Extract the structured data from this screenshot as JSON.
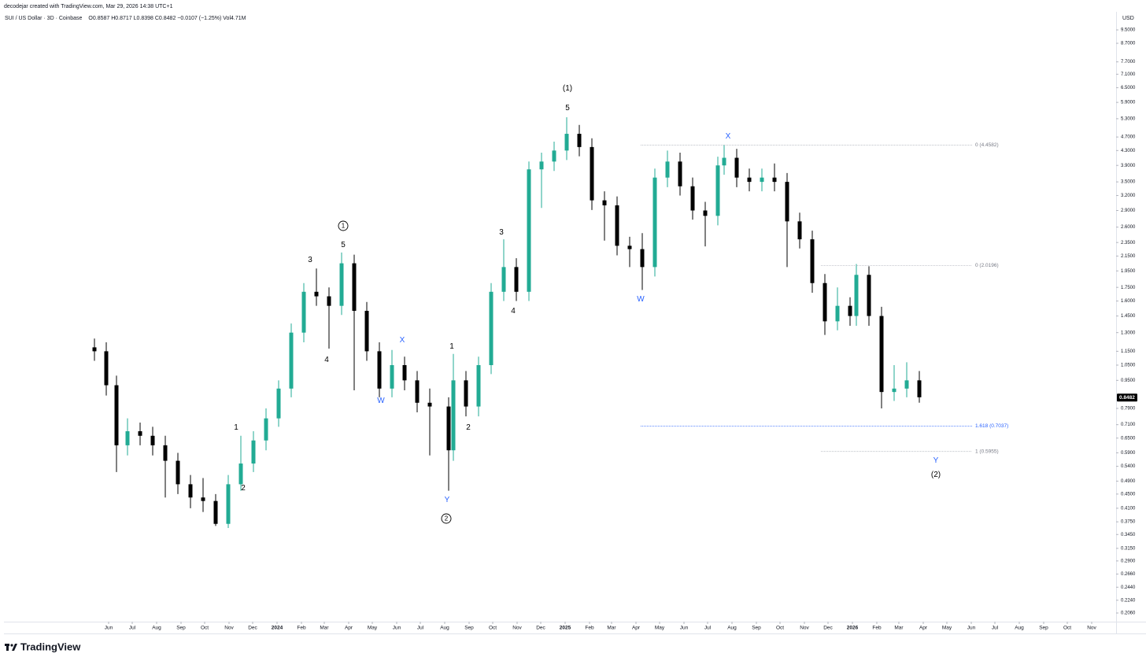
{
  "chart_data": {
    "type": "candlestick",
    "header": "decodejar created with TradingView.com, Mar 29, 2026 14:38 UTC+1",
    "title": "SUI / US Dollar · 3D · Coinbase",
    "ohlc": "O0.8587 H0.8717 L0.8398 C0.8482 −0.0107 (−1.25%) Vol4.71M",
    "currency": "USD",
    "brand": "TradingView",
    "log_scale": true,
    "up_color": "#22ab94",
    "down_color": "#000000",
    "last_price": 0.8482,
    "xlim": [
      -133,
      1280
    ],
    "ylim": [
      0.1946,
      10.7
    ],
    "xticks": [
      {
        "value": 0,
        "label": "Jun"
      },
      {
        "value": 30,
        "label": "Jul"
      },
      {
        "value": 61,
        "label": "Aug"
      },
      {
        "value": 92,
        "label": "Sep"
      },
      {
        "value": 122,
        "label": "Oct"
      },
      {
        "value": 153,
        "label": "Nov"
      },
      {
        "value": 183,
        "label": "Dec"
      },
      {
        "value": 214,
        "label": "2024"
      },
      {
        "value": 245,
        "label": "Feb"
      },
      {
        "value": 274,
        "label": "Mar"
      },
      {
        "value": 305,
        "label": "Apr"
      },
      {
        "value": 335,
        "label": "May"
      },
      {
        "value": 366,
        "label": "Jun"
      },
      {
        "value": 396,
        "label": "Jul"
      },
      {
        "value": 427,
        "label": "Aug"
      },
      {
        "value": 458,
        "label": "Sep"
      },
      {
        "value": 488,
        "label": "Oct"
      },
      {
        "value": 519,
        "label": "Nov"
      },
      {
        "value": 549,
        "label": "Dec"
      },
      {
        "value": 580,
        "label": "2025"
      },
      {
        "value": 611,
        "label": "Feb"
      },
      {
        "value": 639,
        "label": "Mar"
      },
      {
        "value": 670,
        "label": "Apr"
      },
      {
        "value": 700,
        "label": "May"
      },
      {
        "value": 731,
        "label": "Jun"
      },
      {
        "value": 761,
        "label": "Jul"
      },
      {
        "value": 792,
        "label": "Aug"
      },
      {
        "value": 823,
        "label": "Sep"
      },
      {
        "value": 853,
        "label": "Oct"
      },
      {
        "value": 884,
        "label": "Nov"
      },
      {
        "value": 914,
        "label": "Dec"
      },
      {
        "value": 945,
        "label": "2026"
      },
      {
        "value": 976,
        "label": "Feb"
      },
      {
        "value": 1004,
        "label": "Mar"
      },
      {
        "value": 1035,
        "label": "Apr"
      },
      {
        "value": 1065,
        "label": "May"
      },
      {
        "value": 1096,
        "label": "Jun"
      },
      {
        "value": 1126,
        "label": "Jul"
      },
      {
        "value": 1157,
        "label": "Aug"
      },
      {
        "value": 1188,
        "label": "Sep"
      },
      {
        "value": 1218,
        "label": "Oct"
      },
      {
        "value": 1249,
        "label": "Nov"
      }
    ],
    "yticks": [
      {
        "value": 9.5,
        "label": "9.5000"
      },
      {
        "value": 8.7,
        "label": "8.7000"
      },
      {
        "value": 7.7,
        "label": "7.7000"
      },
      {
        "value": 7.1,
        "label": "7.1000"
      },
      {
        "value": 6.5,
        "label": "6.5000"
      },
      {
        "value": 5.9,
        "label": "5.9000"
      },
      {
        "value": 5.3,
        "label": "5.3000"
      },
      {
        "value": 4.7,
        "label": "4.7000"
      },
      {
        "value": 4.3,
        "label": "4.3000"
      },
      {
        "value": 3.9,
        "label": "3.9000"
      },
      {
        "value": 3.5,
        "label": "3.5000"
      },
      {
        "value": 3.2,
        "label": "3.2000"
      },
      {
        "value": 2.9,
        "label": "2.9000"
      },
      {
        "value": 2.6,
        "label": "2.6000"
      },
      {
        "value": 2.35,
        "label": "2.3500"
      },
      {
        "value": 2.15,
        "label": "2.1500"
      },
      {
        "value": 1.95,
        "label": "1.9500"
      },
      {
        "value": 1.75,
        "label": "1.7500"
      },
      {
        "value": 1.6,
        "label": "1.6000"
      },
      {
        "value": 1.45,
        "label": "1.4500"
      },
      {
        "value": 1.3,
        "label": "1.3000"
      },
      {
        "value": 1.15,
        "label": "1.1500"
      },
      {
        "value": 1.05,
        "label": "1.0500"
      },
      {
        "value": 0.95,
        "label": "0.9500"
      },
      {
        "value": 0.79,
        "label": "0.7900"
      },
      {
        "value": 0.71,
        "label": "0.7100"
      },
      {
        "value": 0.65,
        "label": "0.6500"
      },
      {
        "value": 0.59,
        "label": "0.5900"
      },
      {
        "value": 0.54,
        "label": "0.5400"
      },
      {
        "value": 0.49,
        "label": "0.4900"
      },
      {
        "value": 0.45,
        "label": "0.4500"
      },
      {
        "value": 0.41,
        "label": "0.4100"
      },
      {
        "value": 0.375,
        "label": "0.3750"
      },
      {
        "value": 0.345,
        "label": "0.3450"
      },
      {
        "value": 0.315,
        "label": "0.3150"
      },
      {
        "value": 0.29,
        "label": "0.2900"
      },
      {
        "value": 0.266,
        "label": "0.2660"
      },
      {
        "value": 0.244,
        "label": "0.2440"
      },
      {
        "value": 0.224,
        "label": "0.2240"
      },
      {
        "value": 0.206,
        "label": "0.2060"
      }
    ],
    "x": [
      -18,
      -3,
      10,
      24,
      40,
      56,
      72,
      88,
      104,
      120,
      136,
      152,
      168,
      184,
      200,
      216,
      232,
      248,
      264,
      280,
      296,
      312,
      328,
      344,
      360,
      376,
      392,
      408,
      432,
      438,
      454,
      470,
      486,
      502,
      518,
      534,
      550,
      566,
      582,
      598,
      614,
      630,
      646,
      662,
      678,
      694,
      710,
      726,
      742,
      758,
      774,
      782,
      798,
      814,
      830,
      846,
      862,
      878,
      894,
      910,
      926,
      942,
      950,
      966,
      982,
      998,
      1014,
      1030
    ],
    "open": [
      1.18,
      1.15,
      0.92,
      0.62,
      0.68,
      0.66,
      0.62,
      0.56,
      0.48,
      0.44,
      0.43,
      0.37,
      0.48,
      0.55,
      0.64,
      0.74,
      0.9,
      1.3,
      1.7,
      1.65,
      1.55,
      2.05,
      1.5,
      1.15,
      0.9,
      1.05,
      0.95,
      0.82,
      0.8,
      0.6,
      0.95,
      0.8,
      1.05,
      1.7,
      2.0,
      1.7,
      3.8,
      4.0,
      4.3,
      4.8,
      4.4,
      3.1,
      3.0,
      2.3,
      2.25,
      2.0,
      3.6,
      4.0,
      3.4,
      2.9,
      2.8,
      3.9,
      4.1,
      3.6,
      3.5,
      3.6,
      3.5,
      2.7,
      2.4,
      1.8,
      1.4,
      1.55,
      1.45,
      1.9,
      1.45,
      0.88,
      0.9,
      0.95
    ],
    "high": [
      1.25,
      1.22,
      0.98,
      0.74,
      0.72,
      0.7,
      0.66,
      0.59,
      0.51,
      0.5,
      0.45,
      0.51,
      0.66,
      0.68,
      0.79,
      0.95,
      1.38,
      1.8,
      1.98,
      1.75,
      2.2,
      2.17,
      1.59,
      1.22,
      1.16,
      1.11,
      1.01,
      0.9,
      0.85,
      1.13,
      1.01,
      1.11,
      1.8,
      2.4,
      2.12,
      4.0,
      4.24,
      4.56,
      5.35,
      5.09,
      4.66,
      3.29,
      3.18,
      2.44,
      2.5,
      3.82,
      4.3,
      4.24,
      3.6,
      3.07,
      4.13,
      4.46,
      4.35,
      3.82,
      3.82,
      3.95,
      3.71,
      2.86,
      2.54,
      1.91,
      1.75,
      1.64,
      2.04,
      2.01,
      1.54,
      1.05,
      1.07,
      1.01
    ],
    "low": [
      1.08,
      0.86,
      0.52,
      0.58,
      0.62,
      0.58,
      0.44,
      0.45,
      0.41,
      0.4,
      0.365,
      0.36,
      0.46,
      0.52,
      0.6,
      0.7,
      0.85,
      1.22,
      1.55,
      1.17,
      1.46,
      0.89,
      1.08,
      0.85,
      0.85,
      0.89,
      0.77,
      0.58,
      0.46,
      0.56,
      0.75,
      0.75,
      0.99,
      1.6,
      1.6,
      1.6,
      2.95,
      3.76,
      4.04,
      4.14,
      2.91,
      2.38,
      2.16,
      2.0,
      1.72,
      1.88,
      3.38,
      3.2,
      2.73,
      2.29,
      2.63,
      3.67,
      3.38,
      3.29,
      3.29,
      3.29,
      2.0,
      2.26,
      1.69,
      1.28,
      1.32,
      1.36,
      1.36,
      1.36,
      0.79,
      0.83,
      0.85,
      0.82
    ],
    "close": [
      1.15,
      0.92,
      0.62,
      0.68,
      0.66,
      0.62,
      0.56,
      0.48,
      0.44,
      0.43,
      0.37,
      0.48,
      0.55,
      0.64,
      0.74,
      0.9,
      1.3,
      1.7,
      1.65,
      1.55,
      2.05,
      1.5,
      1.15,
      0.9,
      1.05,
      0.95,
      0.82,
      0.8,
      0.6,
      0.95,
      0.8,
      1.05,
      1.7,
      2.0,
      1.7,
      3.8,
      4.0,
      4.3,
      4.8,
      4.4,
      3.1,
      3.0,
      2.3,
      2.25,
      2.0,
      3.6,
      4.0,
      3.4,
      2.9,
      2.8,
      3.9,
      4.1,
      3.6,
      3.5,
      3.6,
      3.5,
      2.7,
      2.4,
      1.8,
      1.4,
      1.55,
      1.45,
      1.9,
      1.45,
      0.88,
      0.9,
      0.95,
      0.85
    ],
    "levels": [
      {
        "label": "0 (4.4582)",
        "value": 4.4582,
        "x_start": 676,
        "x_end": 1097,
        "color": "#b2b5be"
      },
      {
        "label": "0 (2.0196)",
        "value": 2.0196,
        "x_start": 905,
        "x_end": 1097,
        "color": "#b2b5be"
      },
      {
        "label": "1.618 (0.7037)",
        "value": 0.7037,
        "x_start": 676,
        "x_end": 1097,
        "color": "#2962ff"
      },
      {
        "label": "1 (0.5955)",
        "value": 0.5955,
        "x_start": 905,
        "x_end": 1097,
        "color": "#b2b5be"
      }
    ],
    "annotations": [
      {
        "text": "(1)",
        "color": "#000000"
      },
      {
        "text": "5",
        "color": "#000000"
      },
      {
        "text": "X",
        "color": "#2962ff"
      },
      {
        "text": "1",
        "color": "#000000",
        "circled": true
      },
      {
        "text": "3",
        "color": "#000000"
      },
      {
        "text": "5",
        "color": "#000000"
      },
      {
        "text": "3",
        "color": "#000000"
      },
      {
        "text": "4",
        "color": "#000000"
      },
      {
        "text": "4",
        "color": "#000000"
      },
      {
        "text": "X",
        "color": "#2962ff"
      },
      {
        "text": "W",
        "color": "#2962ff"
      },
      {
        "text": "1",
        "color": "#000000"
      },
      {
        "text": "2",
        "color": "#000000"
      },
      {
        "text": "1",
        "color": "#000000"
      },
      {
        "text": "2",
        "color": "#000000"
      },
      {
        "text": "Y",
        "color": "#2962ff"
      },
      {
        "text": "2",
        "color": "#000000",
        "circled": true
      },
      {
        "text": "W",
        "color": "#2962ff"
      },
      {
        "text": "Y",
        "color": "#2962ff"
      },
      {
        "text": "(2)",
        "color": "#000000"
      }
    ]
  }
}
